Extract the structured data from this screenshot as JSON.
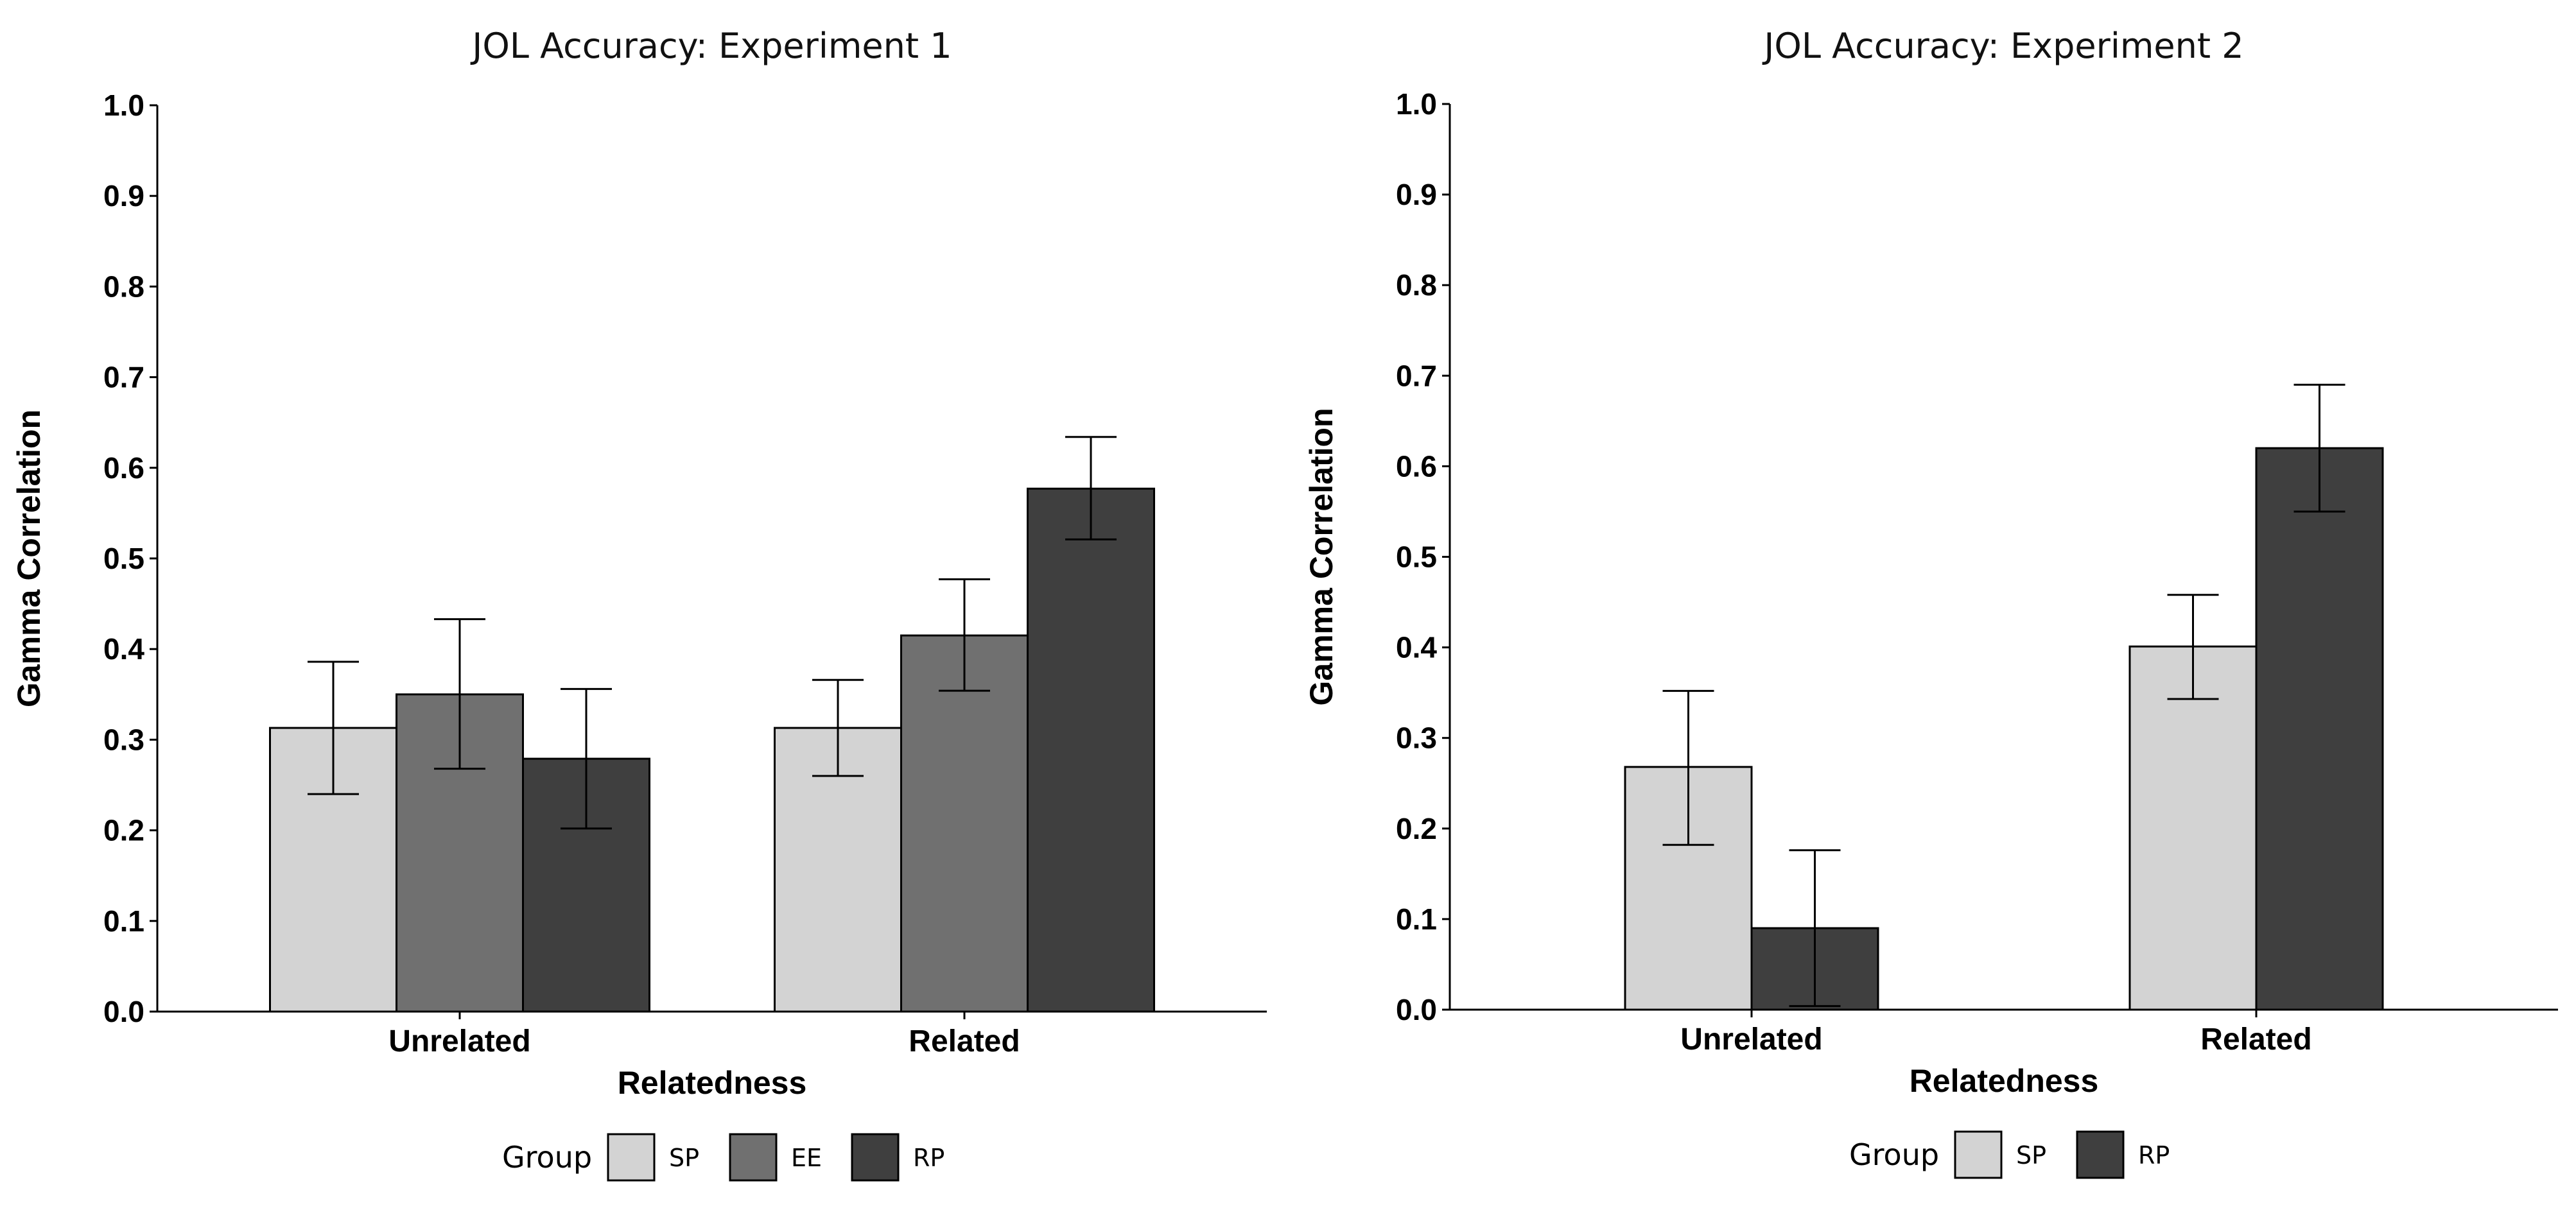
{
  "chart_data": [
    {
      "type": "bar",
      "title": "JOL Accuracy: Experiment 1",
      "xlabel": "Relatedness",
      "ylabel": "Gamma Correlation",
      "ylim": [
        0,
        1
      ],
      "yticks": [
        "0.0",
        "0.1",
        "0.2",
        "0.3",
        "0.4",
        "0.5",
        "0.6",
        "0.7",
        "0.8",
        "0.9",
        "1.0"
      ],
      "categories": [
        "Unrelated",
        "Related"
      ],
      "legend_title": "Group",
      "legend_position": "bottom",
      "series": [
        {
          "name": "SP",
          "color": "#d3d3d3",
          "values": [
            0.313,
            0.313
          ],
          "error_low": [
            0.24,
            0.26
          ],
          "error_high": [
            0.386,
            0.366
          ]
        },
        {
          "name": "EE",
          "color": "#707070",
          "values": [
            0.35,
            0.415
          ],
          "error_low": [
            0.268,
            0.354
          ],
          "error_high": [
            0.433,
            0.477
          ]
        },
        {
          "name": "RP",
          "color": "#3f3f3f",
          "values": [
            0.279,
            0.577
          ],
          "error_low": [
            0.202,
            0.521
          ],
          "error_high": [
            0.356,
            0.634
          ]
        }
      ]
    },
    {
      "type": "bar",
      "title": "JOL Accuracy: Experiment 2",
      "xlabel": "Relatedness",
      "ylabel": "Gamma Correlation",
      "ylim": [
        0,
        1
      ],
      "yticks": [
        "0.0",
        "0.1",
        "0.2",
        "0.3",
        "0.4",
        "0.5",
        "0.6",
        "0.7",
        "0.8",
        "0.9",
        "1.0"
      ],
      "categories": [
        "Unrelated",
        "Related"
      ],
      "legend_title": "Group",
      "legend_position": "bottom",
      "series": [
        {
          "name": "SP",
          "color": "#d3d3d3",
          "values": [
            0.268,
            0.401
          ],
          "error_low": [
            0.182,
            0.343
          ],
          "error_high": [
            0.352,
            0.458
          ]
        },
        {
          "name": "RP",
          "color": "#3f3f3f",
          "values": [
            0.09,
            0.62
          ],
          "error_low": [
            0.004,
            0.55
          ],
          "error_high": [
            0.176,
            0.69
          ]
        }
      ]
    }
  ]
}
